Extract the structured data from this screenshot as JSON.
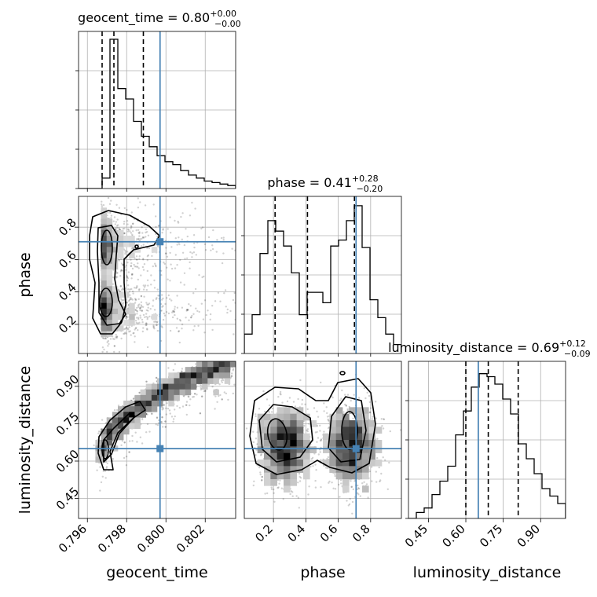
{
  "chart_data": {
    "type": "corner",
    "parameters": [
      {
        "name": "geocent_time",
        "range": [
          0.79555,
          0.80355
        ],
        "ticks": [
          "0.796",
          "0.798",
          "0.800",
          "0.802"
        ],
        "tick_values": [
          0.796,
          0.798,
          0.8,
          0.802
        ]
      },
      {
        "name": "phase",
        "range": [
          0.02,
          0.99
        ],
        "ticks": [
          "0.2",
          "0.4",
          "0.6",
          "0.8"
        ],
        "tick_values": [
          0.2,
          0.4,
          0.6,
          0.8
        ]
      },
      {
        "name": "luminosity_distance",
        "range": [
          0.37,
          1.0
        ],
        "ticks": [
          "0.45",
          "0.60",
          "0.75",
          "0.90"
        ],
        "tick_values": [
          0.45,
          0.6,
          0.75,
          0.9
        ]
      }
    ],
    "titles": [
      {
        "main": "geocent_time = 0.80",
        "sup": "+0.00",
        "sub": "−0.00"
      },
      {
        "main": "phase = 0.41",
        "sup": "+0.28",
        "sub": "−0.20"
      },
      {
        "main": "luminosity_distance = 0.69",
        "sup": "+0.12",
        "sub": "−0.09"
      }
    ],
    "truths": [
      0.7997,
      0.71,
      0.65
    ],
    "quantiles": [
      [
        0.79675,
        0.79735,
        0.79885
      ],
      [
        0.21,
        0.41,
        0.7
      ],
      [
        0.6,
        0.69,
        0.81
      ]
    ],
    "histograms": [
      {
        "edges_start": 0.79555,
        "bin_width": 0.0004,
        "values": [
          0,
          0,
          0,
          0.07,
          1.0,
          0.67,
          0.6,
          0.45,
          0.35,
          0.28,
          0.22,
          0.18,
          0.16,
          0.12,
          0.09,
          0.07,
          0.05,
          0.04,
          0.03,
          0.02
        ]
      },
      {
        "edges_start": 0.02,
        "bin_width": 0.0485,
        "values": [
          0.13,
          0.26,
          0.67,
          0.89,
          0.82,
          0.72,
          0.54,
          0.26,
          0.41,
          0.41,
          0.34,
          0.72,
          0.76,
          0.89,
          0.99,
          0.71,
          0.36,
          0.24,
          0.13,
          0.06
        ]
      },
      {
        "edges_start": 0.37,
        "bin_width": 0.0315,
        "values": [
          0.0,
          0.04,
          0.07,
          0.16,
          0.25,
          0.35,
          0.56,
          0.72,
          0.88,
          0.97,
          0.95,
          0.9,
          0.8,
          0.7,
          0.5,
          0.4,
          0.3,
          0.2,
          0.15,
          0.1
        ]
      }
    ],
    "grid": true,
    "colors": {
      "truth": "#4682b4",
      "contour": "#000000",
      "hist": "#000000",
      "grid": "#b0b0b0",
      "points": "#000000"
    }
  }
}
